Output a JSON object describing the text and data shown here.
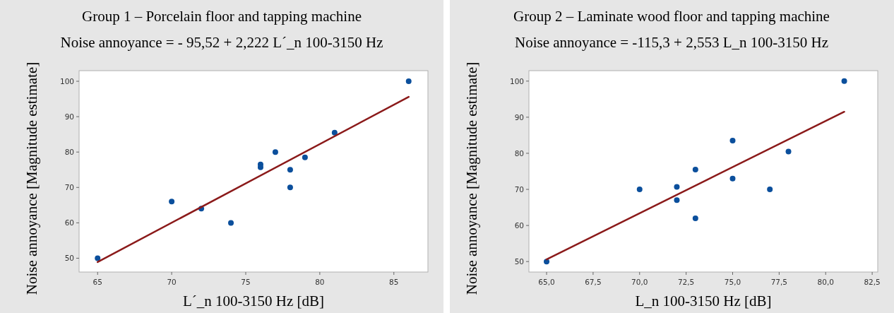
{
  "chart_data": [
    {
      "type": "scatter",
      "title": "Group 1 – Porcelain floor and tapping machine",
      "subtitle": "Noise annoyance = - 95,52 + 2,222 L´_n 100-3150 Hz",
      "xlabel": "L´_n 100-3150 Hz [dB]",
      "ylabel": "Noise annoyance [Magnitude estimate]",
      "xlim": [
        63.75,
        87.3
      ],
      "ylim": [
        46.1,
        103
      ],
      "xticks": [
        65,
        70,
        75,
        80,
        85
      ],
      "yticks": [
        50,
        60,
        70,
        80,
        90,
        100
      ],
      "grid": false,
      "series": [
        {
          "marker": "circle",
          "color": "#0b4f9c",
          "x": [
            65,
            70,
            72,
            74,
            76,
            76,
            77,
            78,
            78,
            79,
            81,
            86
          ],
          "values": [
            50,
            66,
            64,
            60,
            76.5,
            75.7,
            80,
            75,
            70,
            78.5,
            85.5,
            100
          ]
        },
        {
          "type": "line",
          "color": "#8b1a1a",
          "x": [
            65,
            86
          ],
          "values": [
            48.9,
            95.6
          ]
        }
      ]
    },
    {
      "type": "scatter",
      "title": "Group 2 – Laminate wood floor and tapping machine",
      "subtitle": "Noise annoyance = -115,3 + 2,553 L_n 100-3150 Hz",
      "xlabel": "L_n 100-3150 Hz [dB]",
      "ylabel": "Noise annoyance [Magnitude estimate]",
      "xlim": [
        64.05,
        82.8
      ],
      "ylim": [
        47.1,
        102.9
      ],
      "xticks": [
        {
          "value": 65,
          "label": "65,0"
        },
        {
          "value": 67.5,
          "label": "67,5"
        },
        {
          "value": 70,
          "label": "70,0"
        },
        {
          "value": 72.5,
          "label": "72,5"
        },
        {
          "value": 75,
          "label": "75,0"
        },
        {
          "value": 77.5,
          "label": "77,5"
        },
        {
          "value": 80,
          "label": "80,0"
        },
        {
          "value": 82.5,
          "label": "82,5"
        }
      ],
      "yticks": [
        50,
        60,
        70,
        80,
        90,
        100
      ],
      "grid": false,
      "series": [
        {
          "marker": "circle",
          "color": "#0b4f9c",
          "x": [
            65,
            70,
            72,
            72,
            73,
            73,
            75,
            75,
            77,
            78,
            81
          ],
          "values": [
            50,
            70,
            70.7,
            67,
            75.5,
            62,
            83.5,
            73,
            70,
            80.5,
            100
          ]
        },
        {
          "type": "line",
          "color": "#8b1a1a",
          "x": [
            65,
            81
          ],
          "values": [
            50.6,
            91.5
          ]
        }
      ]
    }
  ]
}
